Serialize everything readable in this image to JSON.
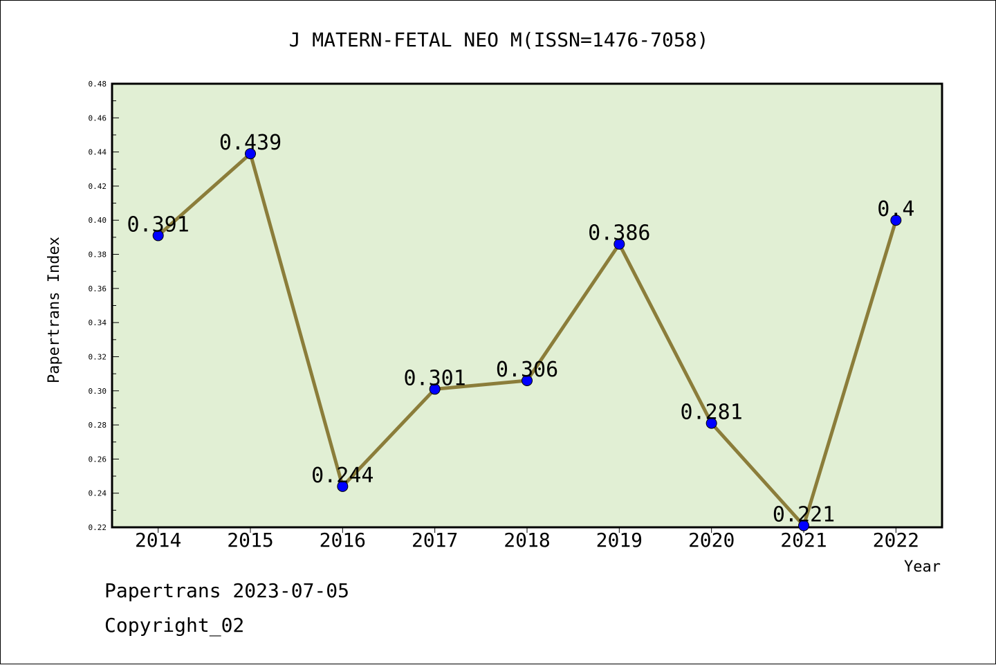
{
  "chart_data": {
    "type": "line",
    "title": "J MATERN-FETAL NEO M(ISSN=1476-7058)",
    "xlabel": "Year",
    "ylabel": "Papertrans Index",
    "categories": [
      "2014",
      "2015",
      "2016",
      "2017",
      "2018",
      "2019",
      "2020",
      "2021",
      "2022"
    ],
    "series": [
      {
        "values": [
          0.391,
          0.439,
          0.244,
          0.301,
          0.306,
          0.386,
          0.281,
          0.221,
          0.4
        ],
        "labels": [
          "0.391",
          "0.439",
          "0.244",
          "0.301",
          "0.306",
          "0.386",
          "0.281",
          "0.221",
          "0.4"
        ]
      }
    ],
    "ylim": [
      0.22,
      0.48
    ],
    "yticks": [
      "0.22",
      "0.24",
      "0.26",
      "0.28",
      "0.30",
      "0.32",
      "0.34",
      "0.36",
      "0.38",
      "0.40",
      "0.42",
      "0.44",
      "0.46",
      "0.48"
    ],
    "grid": false,
    "colors": {
      "plot_background": "#e1efd4",
      "line": "#8b7d3a",
      "marker": "#0000ff",
      "axis": "#000000"
    }
  },
  "footer": {
    "date_line": "Papertrans 2023-07-05",
    "copyright_line": "Copyright_02"
  }
}
